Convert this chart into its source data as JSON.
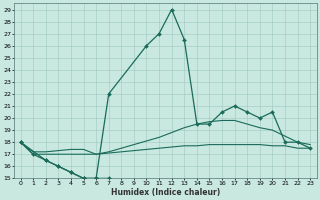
{
  "title": "",
  "xlabel": "Humidex (Indice chaleur)",
  "bg_color": "#c8e8e0",
  "line_color": "#1a6b5a",
  "grid_color": "#a0c8c0",
  "xlim": [
    -0.5,
    23.5
  ],
  "ylim": [
    15,
    29.5
  ],
  "xticks": [
    0,
    1,
    2,
    3,
    4,
    5,
    6,
    7,
    8,
    9,
    10,
    11,
    12,
    13,
    14,
    15,
    16,
    17,
    18,
    19,
    20,
    21,
    22,
    23
  ],
  "yticks": [
    15,
    16,
    17,
    18,
    19,
    20,
    21,
    22,
    23,
    24,
    25,
    26,
    27,
    28,
    29
  ],
  "series": [
    {
      "x": [
        0,
        2,
        3,
        4,
        5,
        6,
        7,
        10,
        11,
        12,
        13,
        14,
        15,
        16,
        17,
        18,
        19,
        20,
        21,
        22,
        23
      ],
      "y": [
        18,
        16.5,
        16,
        15.5,
        15,
        15,
        22,
        26,
        27,
        29,
        26.5,
        19.5,
        19.5,
        20.5,
        21,
        20.5,
        20,
        20.5,
        18,
        18,
        17.5
      ],
      "marker": "D",
      "linewidth": 0.9,
      "markersize": 2.0
    },
    {
      "x": [
        0,
        1,
        2,
        3,
        4,
        5,
        6,
        7,
        8,
        9,
        10,
        11,
        12,
        13,
        14,
        15,
        16,
        17,
        18,
        19,
        20,
        21,
        22,
        23
      ],
      "y": [
        18,
        17.2,
        17.2,
        17.3,
        17.4,
        17.4,
        17.0,
        17.2,
        17.5,
        17.8,
        18.1,
        18.4,
        18.8,
        19.2,
        19.5,
        19.7,
        19.8,
        19.8,
        19.5,
        19.2,
        19.0,
        18.5,
        18.0,
        17.8
      ],
      "marker": null,
      "linewidth": 0.8,
      "markersize": 0
    },
    {
      "x": [
        0,
        1,
        2,
        3,
        4,
        5,
        6,
        7,
        8,
        9,
        10,
        11,
        12,
        13,
        14,
        15,
        16,
        17,
        18,
        19,
        20,
        21,
        22,
        23
      ],
      "y": [
        18,
        17.0,
        17.0,
        17.0,
        17.0,
        17.0,
        17.0,
        17.1,
        17.2,
        17.3,
        17.4,
        17.5,
        17.6,
        17.7,
        17.7,
        17.8,
        17.8,
        17.8,
        17.8,
        17.8,
        17.7,
        17.7,
        17.5,
        17.5
      ],
      "marker": null,
      "linewidth": 0.8,
      "markersize": 0
    },
    {
      "x": [
        0,
        1,
        2,
        3,
        4,
        5,
        6,
        7
      ],
      "y": [
        18,
        17,
        16.5,
        16,
        15.5,
        15,
        15,
        15
      ],
      "marker": "D",
      "linewidth": 0.9,
      "markersize": 2.0
    }
  ]
}
